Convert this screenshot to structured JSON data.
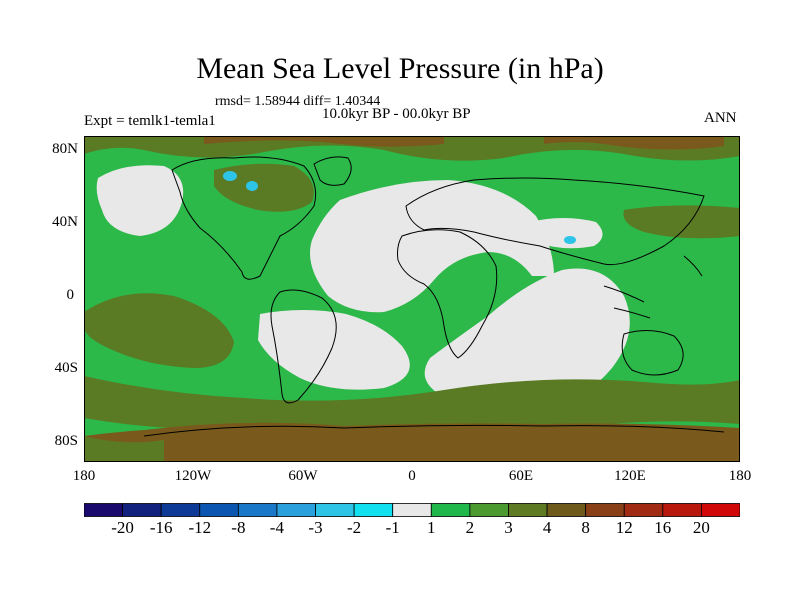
{
  "title": "Mean Sea Level Pressure (in hPa)",
  "stats": "rmsd= 1.58944 diff= 1.40344",
  "period": "10.0kyr BP - 00.0kyr BP",
  "experiment": "Expt = temlk1-temla1",
  "season": "ANN",
  "lat_labels": [
    "80N",
    "40N",
    "0",
    "40S",
    "80S"
  ],
  "lon_labels": [
    "180",
    "120W",
    "60W",
    "0",
    "60E",
    "120E",
    "180"
  ],
  "colorbar": {
    "labels": [
      "-20",
      "-16",
      "-12",
      "-8",
      "-4",
      "-3",
      "-2",
      "-1",
      "1",
      "2",
      "3",
      "4",
      "8",
      "12",
      "16",
      "20"
    ],
    "colors": [
      "#1a0a6e",
      "#12207e",
      "#0c3a96",
      "#0a56b0",
      "#1a78c8",
      "#2aa0dc",
      "#2ec4e8",
      "#10e0f0",
      "#e8e8e8",
      "#20b84a",
      "#4a9a30",
      "#5e7a22",
      "#6e5a1a",
      "#8a4016",
      "#a02a12",
      "#b8180c",
      "#d00808"
    ]
  },
  "palette": {
    "ocean_base": "#2db84a",
    "neutral": "#e8e8e8",
    "olive": "#5a7a24",
    "brown": "#7a5a1c",
    "cyan": "#2ec4e8",
    "coast": "#000000"
  }
}
